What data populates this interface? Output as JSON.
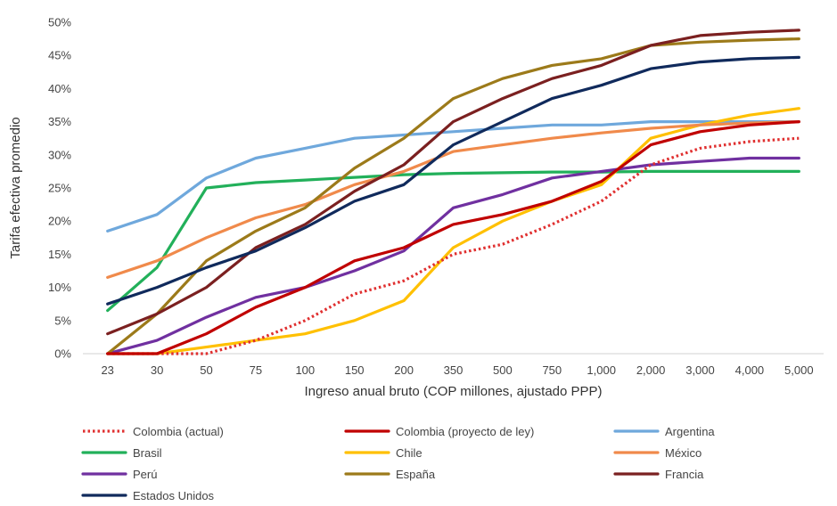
{
  "chart_data": {
    "type": "line",
    "title": "",
    "xlabel": "Ingreso anual bruto (COP millones, ajustado PPP)",
    "ylabel": "Tarifa efectiva promedio",
    "categories": [
      "23",
      "30",
      "50",
      "75",
      "100",
      "150",
      "200",
      "350",
      "500",
      "750",
      "1,000",
      "2,000",
      "3,000",
      "4,000",
      "5,000"
    ],
    "y_ticks": [
      "0%",
      "5%",
      "10%",
      "15%",
      "20%",
      "25%",
      "30%",
      "35%",
      "40%",
      "45%",
      "50%"
    ],
    "ylim": [
      0,
      50
    ],
    "grid": false,
    "legend_position": "bottom",
    "series": [
      {
        "name": "Colombia (actual)",
        "color": "#e03030",
        "dashed": true,
        "values": [
          0,
          0,
          0,
          2,
          5,
          9,
          11,
          15,
          16.5,
          19.5,
          23,
          28.5,
          31,
          32,
          32.5
        ]
      },
      {
        "name": "Colombia (proyecto de ley)",
        "color": "#c00000",
        "dashed": false,
        "values": [
          0,
          0,
          3,
          7,
          10,
          14,
          16,
          19.5,
          21,
          23,
          26,
          31.5,
          33.5,
          34.5,
          35
        ]
      },
      {
        "name": "Argentina",
        "color": "#6fa8dc",
        "dashed": false,
        "values": [
          18.5,
          21,
          26.5,
          29.5,
          31,
          32.5,
          33,
          33.5,
          34,
          34.5,
          34.5,
          35,
          35,
          35,
          35
        ]
      },
      {
        "name": "Brasil",
        "color": "#22b05a",
        "dashed": false,
        "values": [
          6.5,
          13,
          25,
          25.8,
          26.2,
          26.6,
          27,
          27.2,
          27.3,
          27.4,
          27.4,
          27.5,
          27.5,
          27.5,
          27.5
        ]
      },
      {
        "name": "Chile",
        "color": "#ffc000",
        "dashed": false,
        "values": [
          0,
          0,
          1,
          2,
          3,
          5,
          8,
          16,
          20,
          23,
          25.5,
          32.5,
          34.5,
          36,
          37
        ]
      },
      {
        "name": "México",
        "color": "#f08a4b",
        "dashed": false,
        "values": [
          11.5,
          14,
          17.5,
          20.5,
          22.5,
          25.5,
          27.5,
          30.5,
          31.5,
          32.5,
          33.3,
          34,
          34.5,
          34.8,
          35
        ]
      },
      {
        "name": "Perú",
        "color": "#7030a0",
        "dashed": false,
        "values": [
          0,
          2,
          5.5,
          8.5,
          10,
          12.5,
          15.5,
          22,
          24,
          26.5,
          27.5,
          28.5,
          29,
          29.5,
          29.5
        ]
      },
      {
        "name": "España",
        "color": "#9c7a1a",
        "dashed": false,
        "values": [
          0,
          6,
          14,
          18.5,
          22,
          28,
          32.5,
          38.5,
          41.5,
          43.5,
          44.5,
          46.5,
          47,
          47.3,
          47.5
        ]
      },
      {
        "name": "Francia",
        "color": "#7b2020",
        "dashed": false,
        "values": [
          3,
          6,
          10,
          16,
          19.5,
          24.5,
          28.5,
          35,
          38.5,
          41.5,
          43.5,
          46.5,
          48,
          48.5,
          48.8
        ]
      },
      {
        "name": "Estados Unidos",
        "color": "#102a5c",
        "dashed": false,
        "values": [
          7.5,
          10,
          13,
          15.5,
          19,
          23,
          25.5,
          31.5,
          35,
          38.5,
          40.5,
          43,
          44,
          44.5,
          44.7
        ]
      }
    ]
  }
}
